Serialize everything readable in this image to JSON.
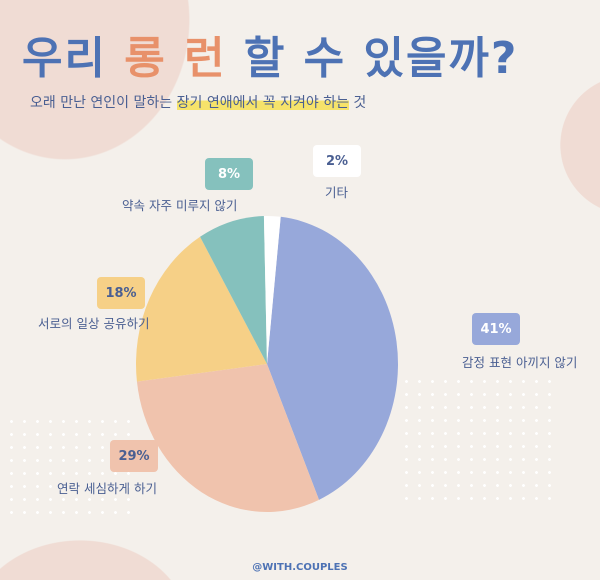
{
  "header": {
    "title_part1": "우리 ",
    "title_accent": "롱 런",
    "title_part2": " 할 수 있을까?",
    "subtitle_pre": "오래 만난 연인이 말하는 ",
    "subtitle_highlight": "장기 연애에서 꼭 지켜야 하는",
    "subtitle_post": " 것"
  },
  "chart_data": {
    "type": "pie",
    "title": "우리 롱 런 할 수 있을까?",
    "slices": [
      {
        "label": "감정 표현 아끼지 않기",
        "value": 41,
        "display": "41%",
        "color": "#97a8da",
        "text_color": "#ffffff"
      },
      {
        "label": "연락 세심하게 하기",
        "value": 29,
        "display": "29%",
        "color": "#f0c3ad",
        "text_color": "#4a5f92"
      },
      {
        "label": "서로의 일상 공유하기",
        "value": 18,
        "display": "18%",
        "color": "#f6d087",
        "text_color": "#4a5f92"
      },
      {
        "label": "약속 자주 미루지 않기",
        "value": 8,
        "display": "8%",
        "color": "#85c1bd",
        "text_color": "#ffffff"
      },
      {
        "label": "기타",
        "value": 2,
        "display": "2%",
        "color": "#ffffff",
        "text_color": "#4a5f92"
      }
    ]
  },
  "footer": {
    "handle": "@WITH.COUPLES"
  }
}
